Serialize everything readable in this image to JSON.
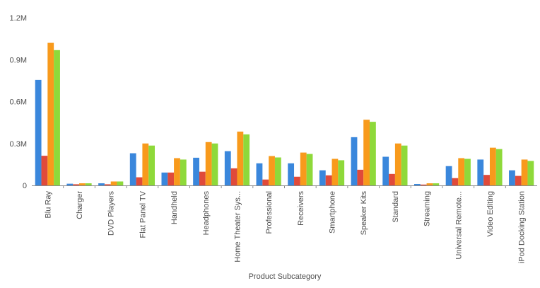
{
  "chart_data": {
    "type": "bar",
    "title": "",
    "xlabel": "Product Subcategory",
    "ylabel": "",
    "ylim": [
      0,
      1200000
    ],
    "yticks": [
      {
        "value": 0,
        "label": "0"
      },
      {
        "value": 300000,
        "label": "0.3M"
      },
      {
        "value": 600000,
        "label": "0.6M"
      },
      {
        "value": 900000,
        "label": "0.9M"
      },
      {
        "value": 1200000,
        "label": "1.2M"
      }
    ],
    "grid": false,
    "legend": "none",
    "categories": [
      "Blu Ray",
      "Charger",
      "DVD Players",
      "Flat Panel TV",
      "Handheld",
      "Headphones",
      "Home Theater Sys...",
      "Professional",
      "Receivers",
      "Smartphone",
      "Speaker Kits",
      "Standard",
      "Streaming",
      "Universal Remote...",
      "Video Editing",
      "iPod Docking Station"
    ],
    "series": [
      {
        "color": "#3a87dc",
        "values": [
          755000,
          12000,
          15000,
          230000,
          92000,
          198000,
          245000,
          158000,
          158000,
          108000,
          345000,
          205000,
          10000,
          138000,
          185000,
          108000
        ]
      },
      {
        "color": "#e04a3a",
        "values": [
          212000,
          8000,
          8000,
          58000,
          92000,
          98000,
          122000,
          42000,
          62000,
          72000,
          112000,
          82000,
          6000,
          52000,
          75000,
          68000
        ]
      },
      {
        "color": "#f89a1c",
        "values": [
          1020000,
          15000,
          28000,
          300000,
          195000,
          310000,
          385000,
          210000,
          235000,
          190000,
          470000,
          300000,
          15000,
          195000,
          270000,
          185000
        ]
      },
      {
        "color": "#8ed93a",
        "values": [
          968000,
          15000,
          28000,
          285000,
          185000,
          300000,
          365000,
          200000,
          225000,
          180000,
          455000,
          285000,
          15000,
          190000,
          260000,
          175000
        ]
      }
    ]
  }
}
